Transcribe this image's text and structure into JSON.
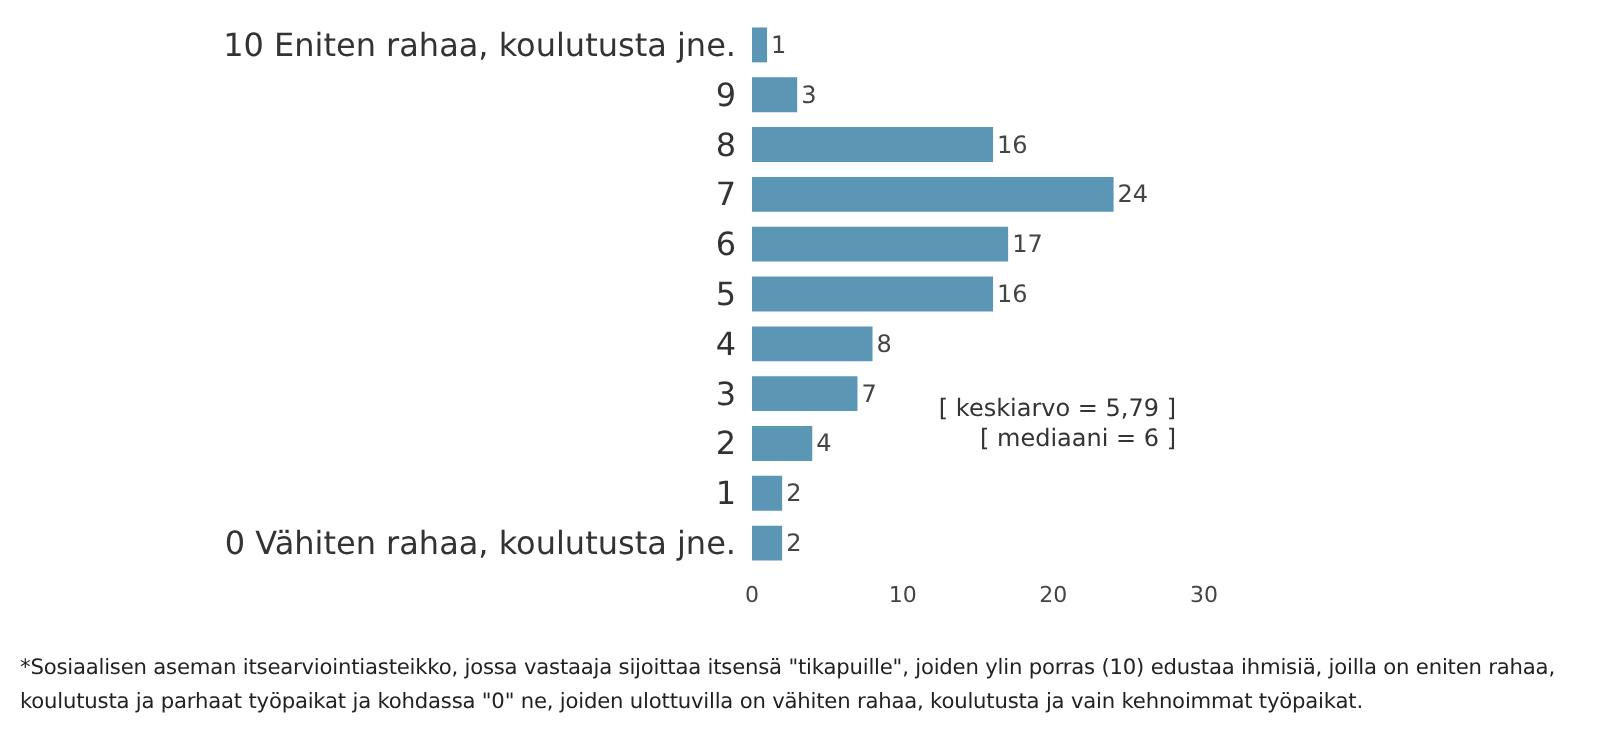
{
  "chart_data": {
    "type": "bar",
    "orientation": "horizontal",
    "categories": [
      "10 Eniten rahaa, koulutusta jne.",
      "9",
      "8",
      "7",
      "6",
      "5",
      "4",
      "3",
      "2",
      "1",
      "0 Vähiten rahaa, koulutusta jne."
    ],
    "values": [
      1,
      3,
      16,
      24,
      17,
      16,
      8,
      7,
      4,
      2,
      2
    ],
    "color": "#5b96b5",
    "xlim": [
      0,
      30
    ],
    "xticks": [
      0,
      10,
      20,
      30
    ],
    "grid": false,
    "data_labels": true,
    "annotations": [
      "[ keskiarvo = 5,79 ]",
      "[ mediaani = 6 ]",
      "*Sosiaalisen aseman itsearviointiasteikko, jossa vastaaja sijoittaa itsensä \"tikapuille\", joiden ylin porras (10) edustaa ihmisiä, joilla on eniten rahaa, koulutusta ja parhaat työpaikat ja kohdassa \"0\" ne, joiden ulottuvilla on vähiten rahaa, koulutusta ja vain kehnoimmat työpaikat."
    ]
  }
}
